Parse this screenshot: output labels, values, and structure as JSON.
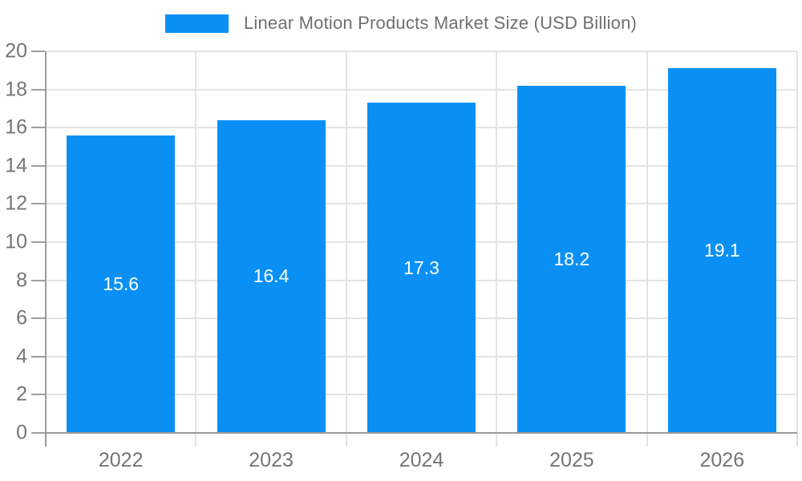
{
  "chart_data": {
    "type": "bar",
    "title": "Linear Motion Products Market Size (USD Billion)",
    "categories": [
      "2022",
      "2023",
      "2024",
      "2025",
      "2026"
    ],
    "values": [
      15.6,
      16.4,
      17.3,
      18.2,
      19.1
    ],
    "series": [
      {
        "name": "Linear Motion Products Market Size (USD Billion)",
        "values": [
          15.6,
          16.4,
          17.3,
          18.2,
          19.1
        ]
      }
    ],
    "xlabel": "",
    "ylabel": "",
    "ylim": [
      0,
      20
    ],
    "ytick_step": 2,
    "ytick_labels": [
      "0",
      "2",
      "4",
      "6",
      "8",
      "10",
      "12",
      "14",
      "16",
      "18",
      "20"
    ],
    "grid": true,
    "legend_position": "top-center",
    "bar_labels_visible": true,
    "colors": {
      "bar": "#0a90f5",
      "bar_label": "#ffffff",
      "legend_text": "#6f6f6f",
      "axis_text": "#757575",
      "axis_line": "#9a9a9a",
      "gridline": "#e3e3e3",
      "background": "#ffffff"
    }
  }
}
